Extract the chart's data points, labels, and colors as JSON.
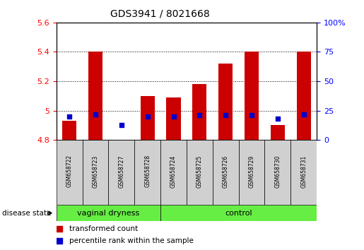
{
  "title": "GDS3941 / 8021668",
  "samples": [
    "GSM658722",
    "GSM658723",
    "GSM658727",
    "GSM658728",
    "GSM658724",
    "GSM658725",
    "GSM658726",
    "GSM658729",
    "GSM658730",
    "GSM658731"
  ],
  "n_vd": 4,
  "n_ctrl": 6,
  "red_values": [
    4.93,
    5.4,
    4.8,
    5.1,
    5.09,
    5.18,
    5.32,
    5.4,
    4.9,
    5.4
  ],
  "blue_values": [
    20,
    22,
    13,
    20,
    20,
    21,
    21,
    21,
    18,
    22
  ],
  "ymin": 4.8,
  "ymax": 5.6,
  "yticks": [
    4.8,
    5.0,
    5.2,
    5.4,
    5.6
  ],
  "y2min": 0,
  "y2max": 100,
  "y2ticks": [
    0,
    25,
    50,
    75,
    100
  ],
  "bar_color": "#cc0000",
  "dot_color": "#0000cc",
  "group_color": "#66ee44",
  "sample_box_color": "#d0d0d0",
  "group_label1": "vaginal dryness",
  "group_label2": "control",
  "legend_red": "transformed count",
  "legend_blue": "percentile rank within the sample",
  "disease_state_label": "disease state"
}
